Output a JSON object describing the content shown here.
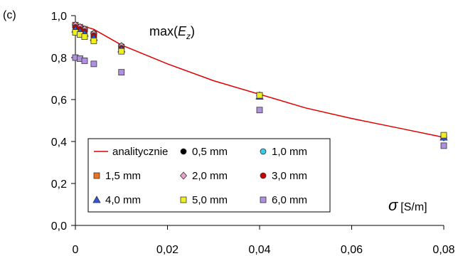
{
  "panel_label": "(c)",
  "chart_data": {
    "type": "scatter",
    "title": "",
    "annotation": {
      "prefix": "max(",
      "var": "E",
      "sub": "z",
      "suffix": ")"
    },
    "xlabel": {
      "symbol": "σ",
      "unit": "[S/m]"
    },
    "ylabel": "",
    "xlim": [
      0,
      0.08
    ],
    "ylim": [
      0,
      1.0
    ],
    "x_ticks": [
      0,
      0.02,
      0.04,
      0.06,
      0.08
    ],
    "x_tick_labels": [
      "0",
      "0,02",
      "0,04",
      "0,06",
      "0,08"
    ],
    "y_ticks": [
      0,
      0.2,
      0.4,
      0.6,
      0.8,
      1.0
    ],
    "y_tick_labels": [
      "0,0",
      "0,2",
      "0,4",
      "0,6",
      "0,8",
      "1,0"
    ],
    "grid": false,
    "legend_position": "bottom-left inside",
    "analytic": {
      "name": "analitycznie",
      "color": "#e00000",
      "x": [
        0,
        0.001,
        0.002,
        0.004,
        0.01,
        0.02,
        0.03,
        0.04,
        0.05,
        0.06,
        0.07,
        0.08
      ],
      "y": [
        0.96,
        0.955,
        0.948,
        0.935,
        0.86,
        0.77,
        0.69,
        0.625,
        0.56,
        0.51,
        0.465,
        0.42
      ]
    },
    "series": [
      {
        "name": "0,5 mm",
        "marker": "circle",
        "color": "#000000",
        "x": [
          0,
          0.001,
          0.002,
          0.004,
          0.01,
          0.04,
          0.08
        ],
        "y": [
          0.95,
          0.94,
          0.93,
          0.91,
          0.85,
          0.62,
          0.42
        ]
      },
      {
        "name": "1,0 mm",
        "marker": "circle",
        "color": "#33ccee",
        "x": [
          0,
          0.001,
          0.002,
          0.004,
          0.01,
          0.04,
          0.08
        ],
        "y": [
          0.955,
          0.945,
          0.935,
          0.915,
          0.855,
          0.62,
          0.425
        ]
      },
      {
        "name": "1,5 mm",
        "marker": "square",
        "color": "#f07020",
        "x": [
          0,
          0.001,
          0.002,
          0.004,
          0.01,
          0.04,
          0.08
        ],
        "y": [
          0.955,
          0.945,
          0.935,
          0.91,
          0.85,
          0.62,
          0.42
        ]
      },
      {
        "name": "2,0 mm",
        "marker": "diamond",
        "color": "#e8a0c8",
        "x": [
          0,
          0.001,
          0.002,
          0.004,
          0.01,
          0.04,
          0.08
        ],
        "y": [
          0.955,
          0.945,
          0.935,
          0.915,
          0.855,
          0.62,
          0.42
        ]
      },
      {
        "name": "3,0 mm",
        "marker": "circle",
        "color": "#cc0000",
        "x": [
          0,
          0.001,
          0.002,
          0.004,
          0.01,
          0.04,
          0.08
        ],
        "y": [
          0.945,
          0.935,
          0.925,
          0.905,
          0.845,
          0.615,
          0.42
        ]
      },
      {
        "name": "4,0 mm",
        "marker": "triangle",
        "color": "#3355dd",
        "x": [
          0,
          0.001,
          0.002,
          0.004,
          0.01,
          0.04,
          0.08
        ],
        "y": [
          0.935,
          0.925,
          0.915,
          0.895,
          0.84,
          0.615,
          0.42
        ]
      },
      {
        "name": "5,0 mm",
        "marker": "square",
        "color": "#f0f020",
        "x": [
          0,
          0.001,
          0.002,
          0.004,
          0.01,
          0.04,
          0.08
        ],
        "y": [
          0.92,
          0.91,
          0.9,
          0.88,
          0.83,
          0.62,
          0.43
        ]
      },
      {
        "name": "6,0 mm",
        "marker": "square",
        "color": "#b090e0",
        "x": [
          0,
          0.001,
          0.002,
          0.004,
          0.01,
          0.04,
          0.08
        ],
        "y": [
          0.8,
          0.795,
          0.785,
          0.77,
          0.73,
          0.55,
          0.38
        ]
      }
    ]
  }
}
